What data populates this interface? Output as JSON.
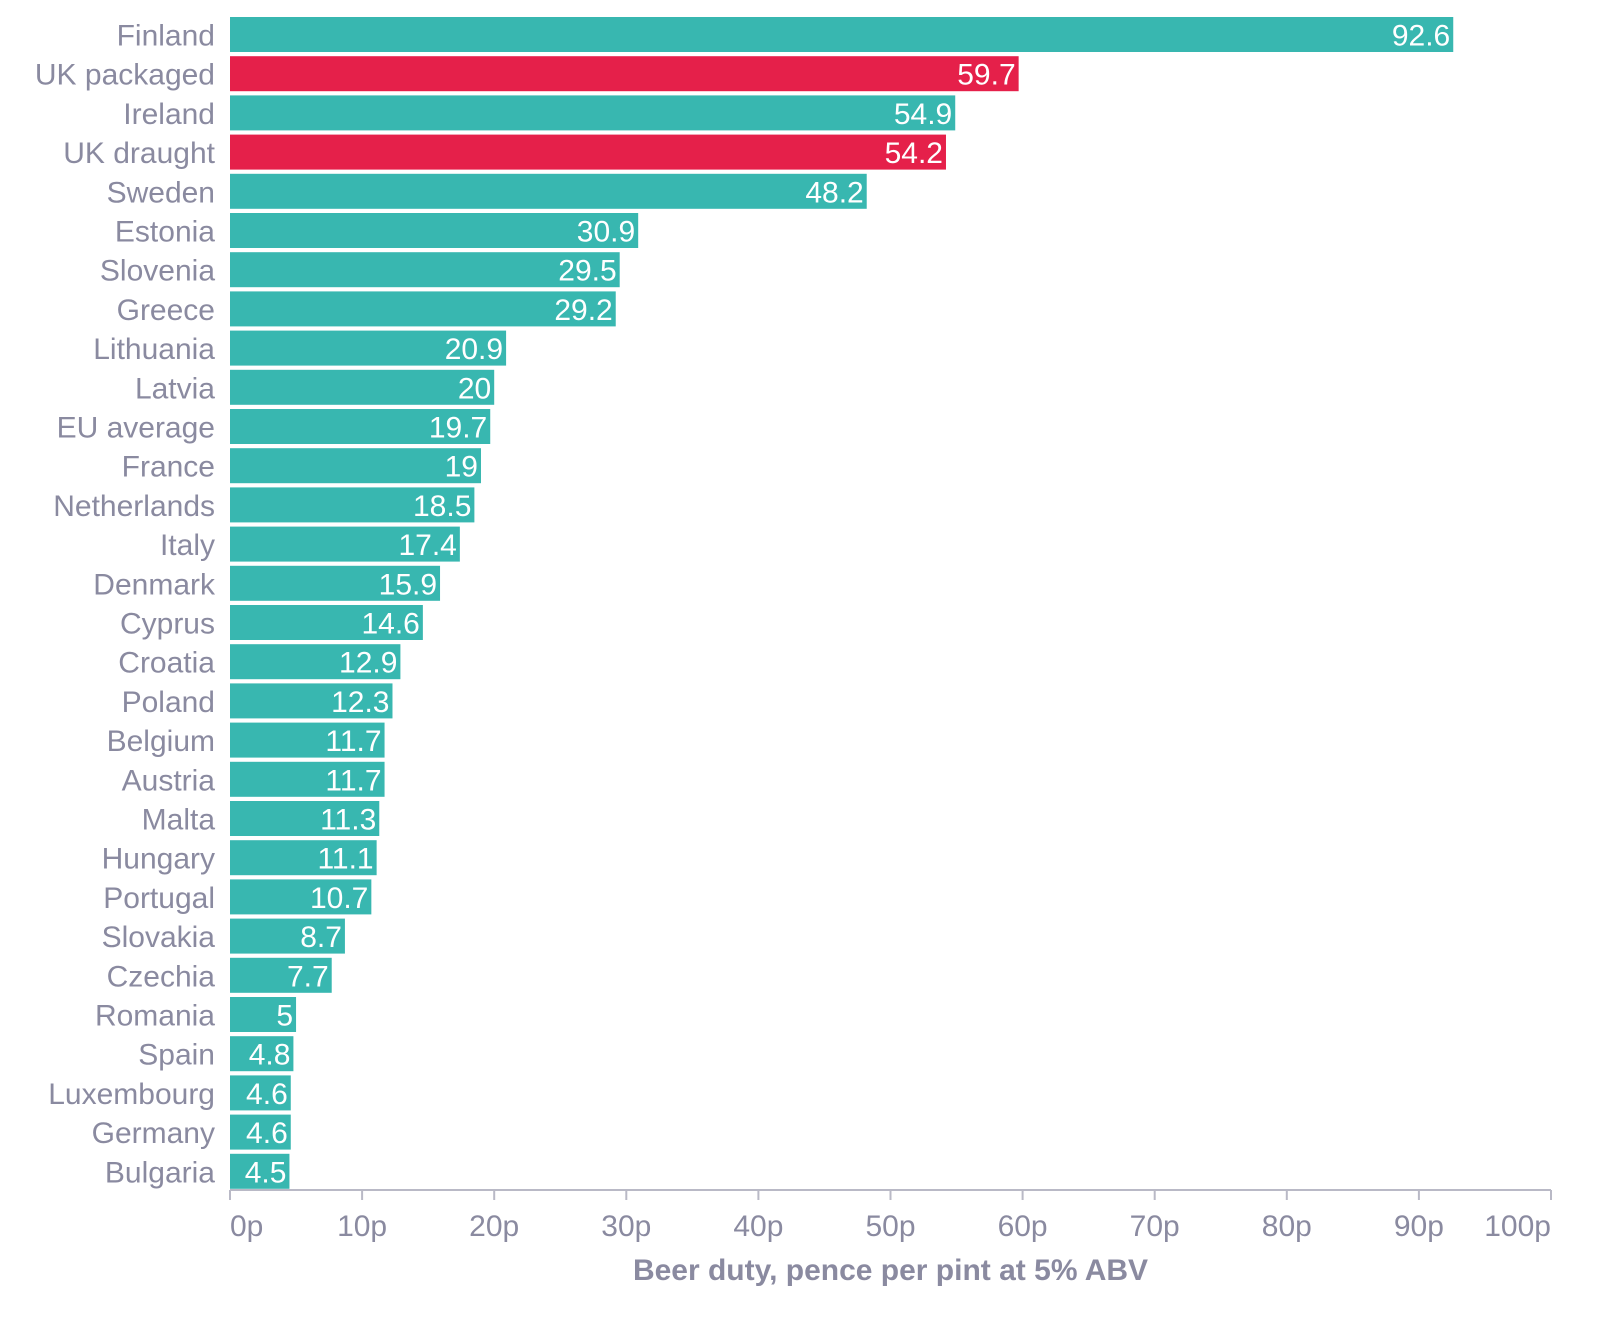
{
  "chart_data": {
    "type": "bar",
    "orientation": "horizontal",
    "categories": [
      "Finland",
      "UK packaged",
      "Ireland",
      "UK draught",
      "Sweden",
      "Estonia",
      "Slovenia",
      "Greece",
      "Lithuania",
      "Latvia",
      "EU average",
      "France",
      "Netherlands",
      "Italy",
      "Denmark",
      "Cyprus",
      "Croatia",
      "Poland",
      "Belgium",
      "Austria",
      "Malta",
      "Hungary",
      "Portugal",
      "Slovakia",
      "Czechia",
      "Romania",
      "Spain",
      "Luxembourg",
      "Germany",
      "Bulgaria"
    ],
    "values": [
      92.6,
      59.7,
      54.9,
      54.2,
      48.2,
      30.9,
      29.5,
      29.2,
      20.9,
      20,
      19.7,
      19,
      18.5,
      17.4,
      15.9,
      14.6,
      12.9,
      12.3,
      11.7,
      11.7,
      11.3,
      11.1,
      10.7,
      8.7,
      7.7,
      5,
      4.8,
      4.6,
      4.6,
      4.5
    ],
    "value_labels": [
      "92.6",
      "59.7",
      "54.9",
      "54.2",
      "48.2",
      "30.9",
      "29.5",
      "29.2",
      "20.9",
      "20",
      "19.7",
      "19",
      "18.5",
      "17.4",
      "15.9",
      "14.6",
      "12.9",
      "12.3",
      "11.7",
      "11.7",
      "11.3",
      "11.1",
      "10.7",
      "8.7",
      "7.7",
      "5",
      "4.8",
      "4.6",
      "4.6",
      "4.5"
    ],
    "highlighted": [
      "UK packaged",
      "UK draught"
    ],
    "xlabel": "Beer duty, pence per pint at 5% ABV",
    "ylabel": "",
    "xlim": [
      0,
      100
    ],
    "xticks": [
      0,
      10,
      20,
      30,
      40,
      50,
      60,
      70,
      80,
      90,
      100
    ],
    "xtick_labels": [
      "0p",
      "10p",
      "20p",
      "30p",
      "40p",
      "50p",
      "60p",
      "70p",
      "80p",
      "90p",
      "100p"
    ],
    "grid": false,
    "legend": "none",
    "colors": {
      "default_bar": "#38b7b0",
      "highlight_bar": "#e5204a",
      "label_text": "#8a8aa0",
      "axis": "#b9b9c6"
    }
  }
}
